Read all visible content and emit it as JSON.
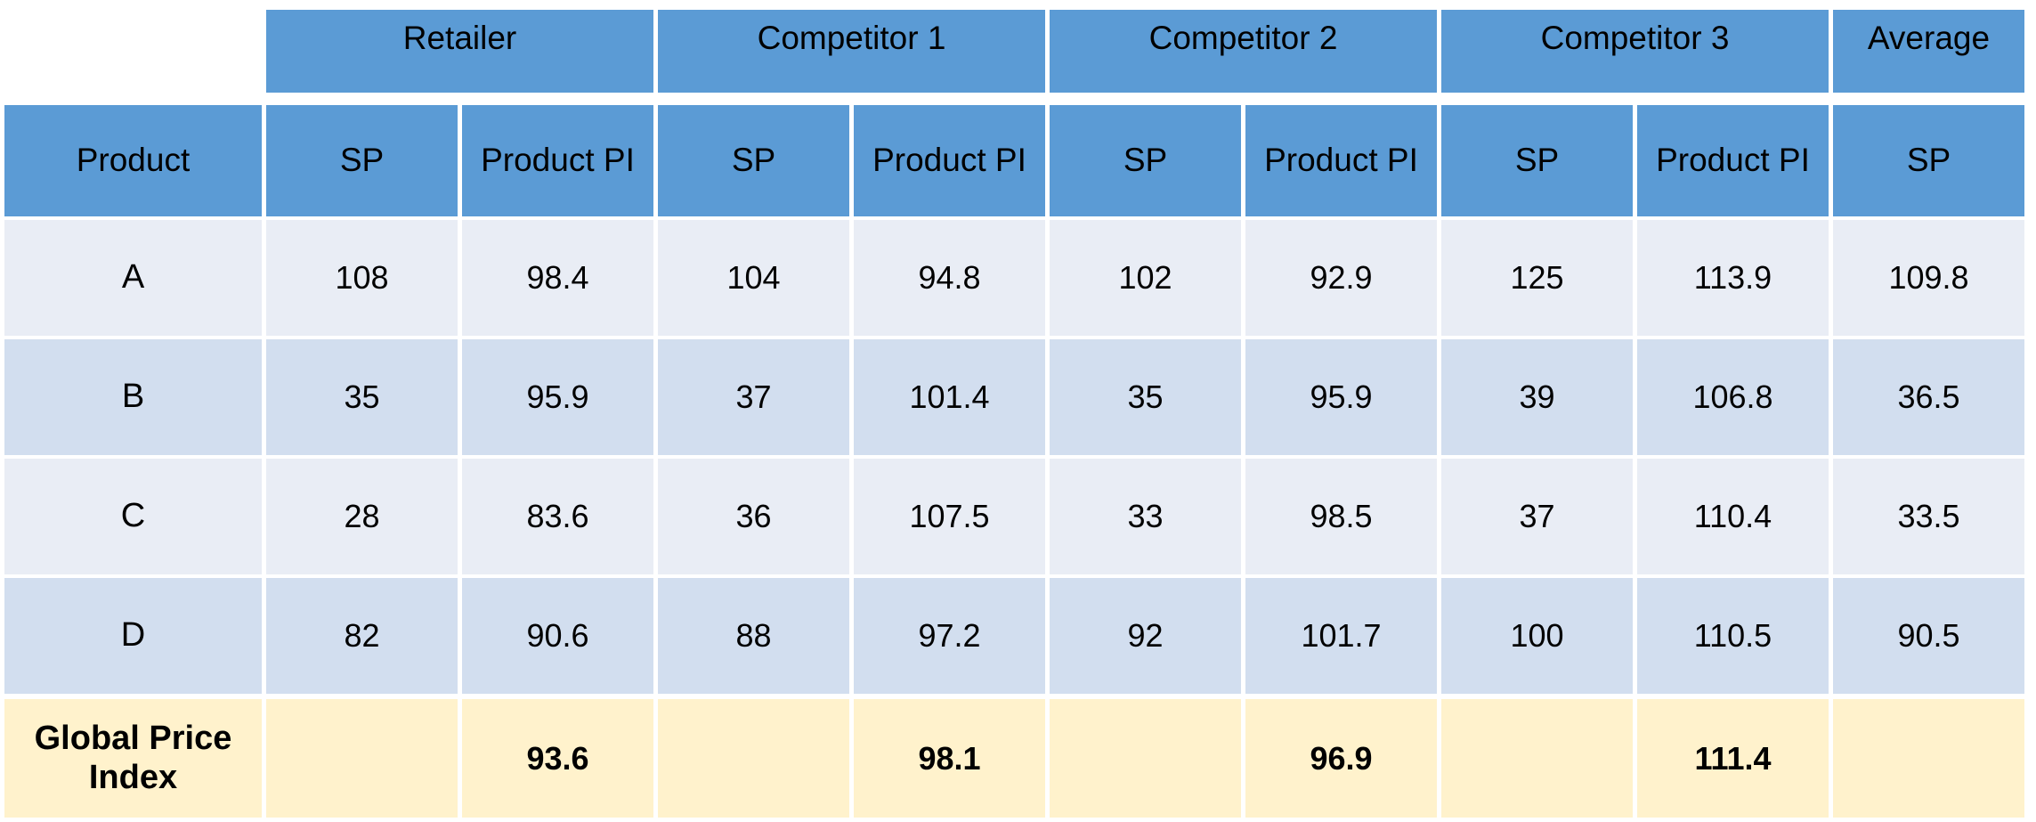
{
  "table": {
    "group_headers": [
      {
        "label": "Retailer",
        "span": 2
      },
      {
        "label": "Competitor 1",
        "span": 2
      },
      {
        "label": "Competitor 2",
        "span": 2
      },
      {
        "label": "Competitor 3",
        "span": 2
      },
      {
        "label": "Average",
        "span": 1
      }
    ],
    "column_headers": [
      "Product",
      "SP",
      "Product PI",
      "SP",
      "Product PI",
      "SP",
      "Product PI",
      "SP",
      "Product PI",
      "SP"
    ],
    "rows": [
      {
        "product": "A",
        "cells": [
          "108",
          "98.4",
          "104",
          "94.8",
          "102",
          "92.9",
          "125",
          "113.9",
          "109.8"
        ]
      },
      {
        "product": "B",
        "cells": [
          "35",
          "95.9",
          "37",
          "101.4",
          "35",
          "95.9",
          "39",
          "106.8",
          "36.5"
        ]
      },
      {
        "product": "C",
        "cells": [
          "28",
          "83.6",
          "36",
          "107.5",
          "33",
          "98.5",
          "37",
          "110.4",
          "33.5"
        ]
      },
      {
        "product": "D",
        "cells": [
          "82",
          "90.6",
          "88",
          "97.2",
          "92",
          "101.7",
          "100",
          "110.5",
          "90.5"
        ]
      }
    ],
    "global_row": {
      "label": "Global Price Index",
      "cells": [
        "",
        "93.6",
        "",
        "98.1",
        "",
        "96.9",
        "",
        "111.4",
        ""
      ]
    }
  },
  "colors": {
    "header_blue": "#5B9BD5",
    "row_light": "#E9EDF5",
    "row_dark": "#D2DEEF",
    "global_row": "#FFF2CC"
  }
}
